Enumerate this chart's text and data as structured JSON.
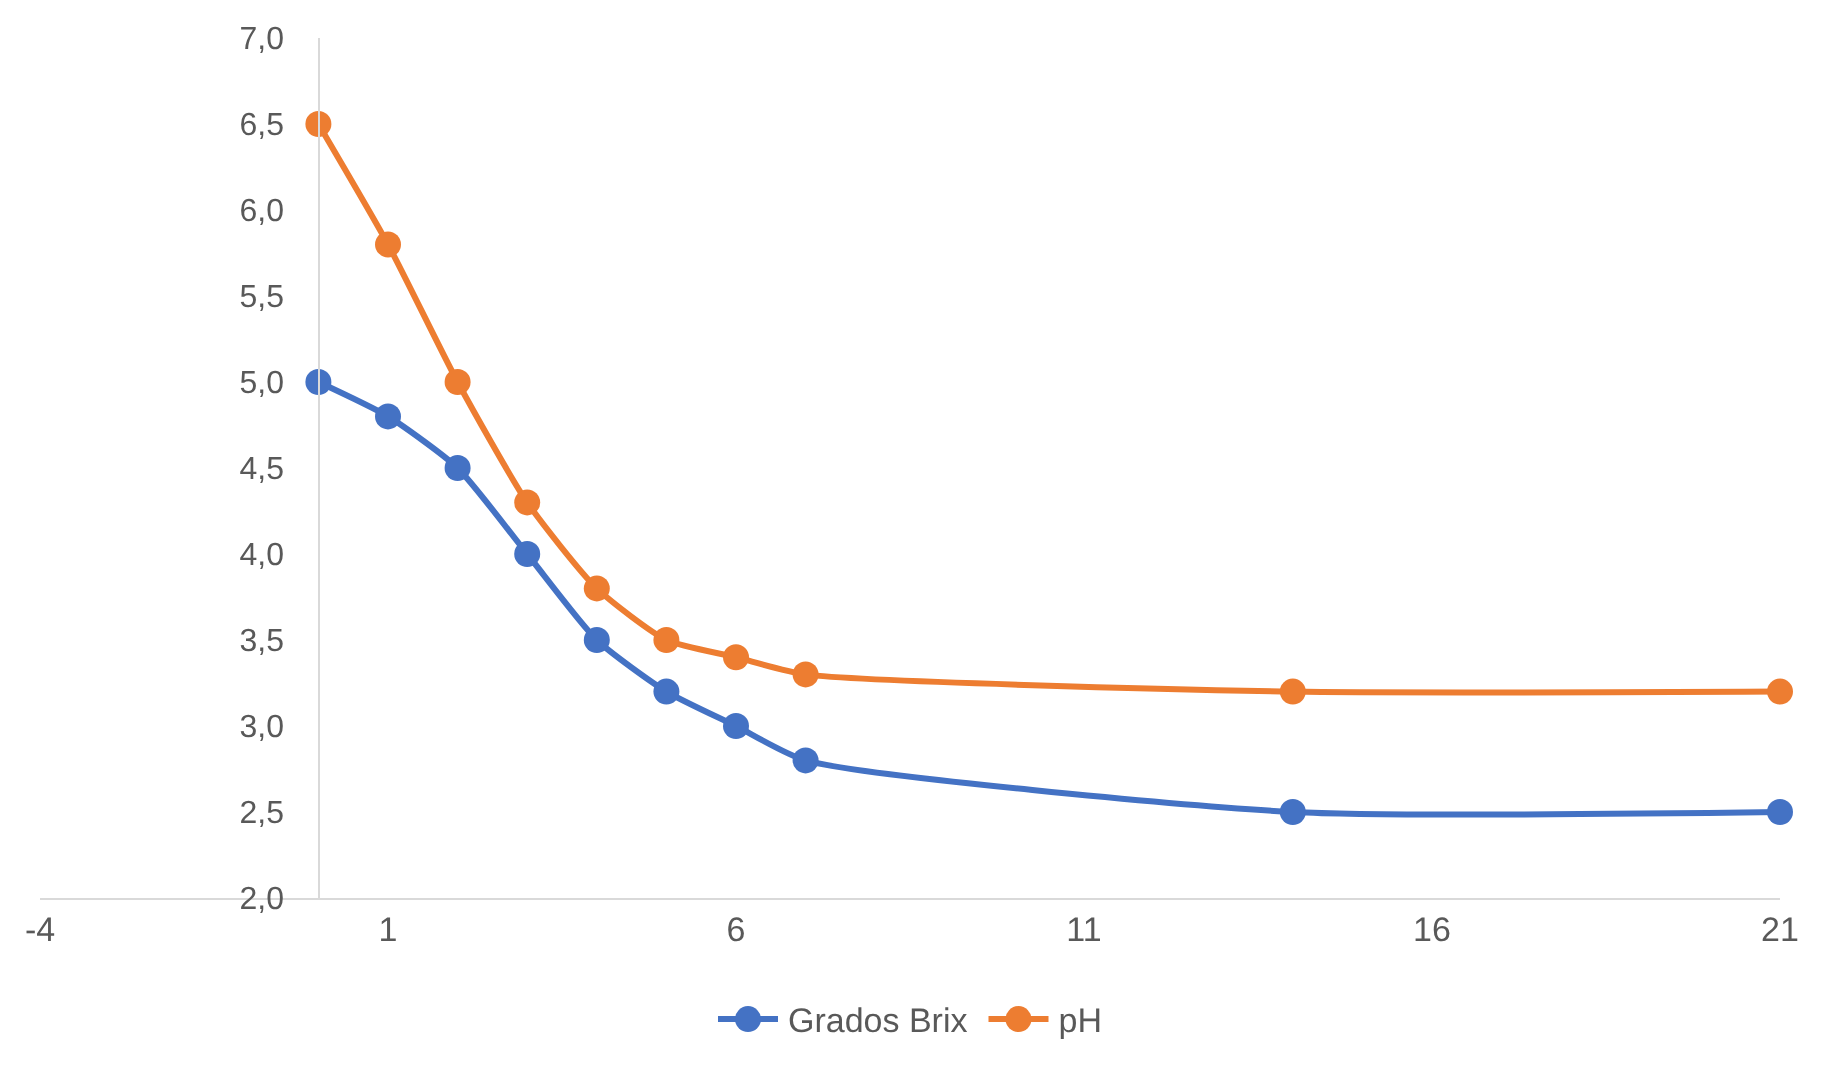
{
  "chart_data": {
    "type": "line",
    "x": [
      0,
      1,
      2,
      3,
      4,
      5,
      6,
      7,
      14,
      21
    ],
    "series": [
      {
        "name": "Grados Brix",
        "color": "#4472c4",
        "values": [
          5.0,
          4.8,
          4.5,
          4.0,
          3.5,
          3.2,
          3.0,
          2.8,
          2.5,
          2.5
        ]
      },
      {
        "name": "pH",
        "color": "#ed7d31",
        "values": [
          6.5,
          5.8,
          5.0,
          4.3,
          3.8,
          3.5,
          3.4,
          3.3,
          3.2,
          3.2
        ]
      }
    ],
    "xlim": [
      -4,
      21
    ],
    "xticks": [
      -4,
      1,
      6,
      11,
      16,
      21
    ],
    "ylim": [
      2.0,
      7.0
    ],
    "yticks": [
      {
        "value": 2.0,
        "label": "2,0"
      },
      {
        "value": 2.5,
        "label": "2,5"
      },
      {
        "value": 3.0,
        "label": "3,0"
      },
      {
        "value": 3.5,
        "label": "3,5"
      },
      {
        "value": 4.0,
        "label": "4,0"
      },
      {
        "value": 4.5,
        "label": "4,5"
      },
      {
        "value": 5.0,
        "label": "5,0"
      },
      {
        "value": 5.5,
        "label": "5,5"
      },
      {
        "value": 6.0,
        "label": "6,0"
      },
      {
        "value": 6.5,
        "label": "6,5"
      },
      {
        "value": 7.0,
        "label": "7,0"
      }
    ],
    "legend": "bottom",
    "marker": "circle",
    "line_style": "solid"
  }
}
